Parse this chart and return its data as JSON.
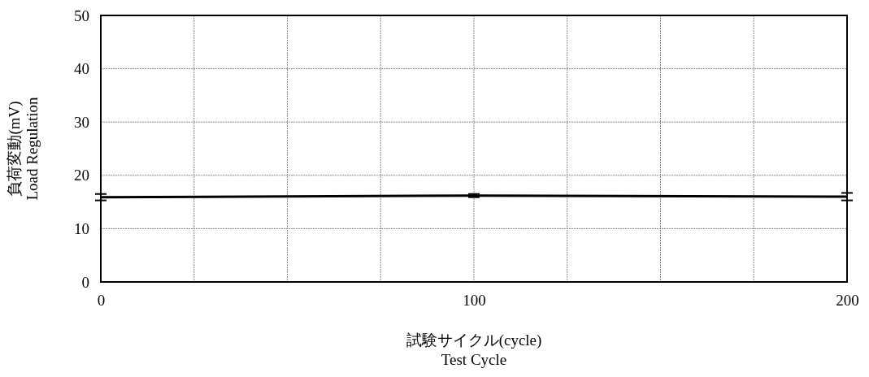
{
  "chart_data": {
    "type": "line",
    "xlabel": "試験サイクル(cycle)\nTest Cycle",
    "ylabel": "負荷変動(mV)\nLoad Regulation",
    "x": [
      0,
      100,
      200
    ],
    "series": [
      {
        "color": "#000000",
        "values": [
          15.9,
          16.2,
          16.0
        ],
        "errors": [
          0.6,
          0.3,
          0.7
        ]
      }
    ],
    "xlim": [
      0,
      200
    ],
    "xticks": [
      0,
      {
        "value": 25,
        "label": null
      },
      {
        "value": 50,
        "label": null
      },
      {
        "value": 75,
        "label": null
      },
      100,
      {
        "value": 125,
        "label": null
      },
      {
        "value": 150,
        "label": null
      },
      {
        "value": 175,
        "label": null
      },
      200
    ],
    "ylim": [
      0,
      50
    ],
    "yticks": [
      0,
      10,
      20,
      30,
      40,
      50
    ],
    "grid": true,
    "marker": "none",
    "line_style": "solid"
  }
}
